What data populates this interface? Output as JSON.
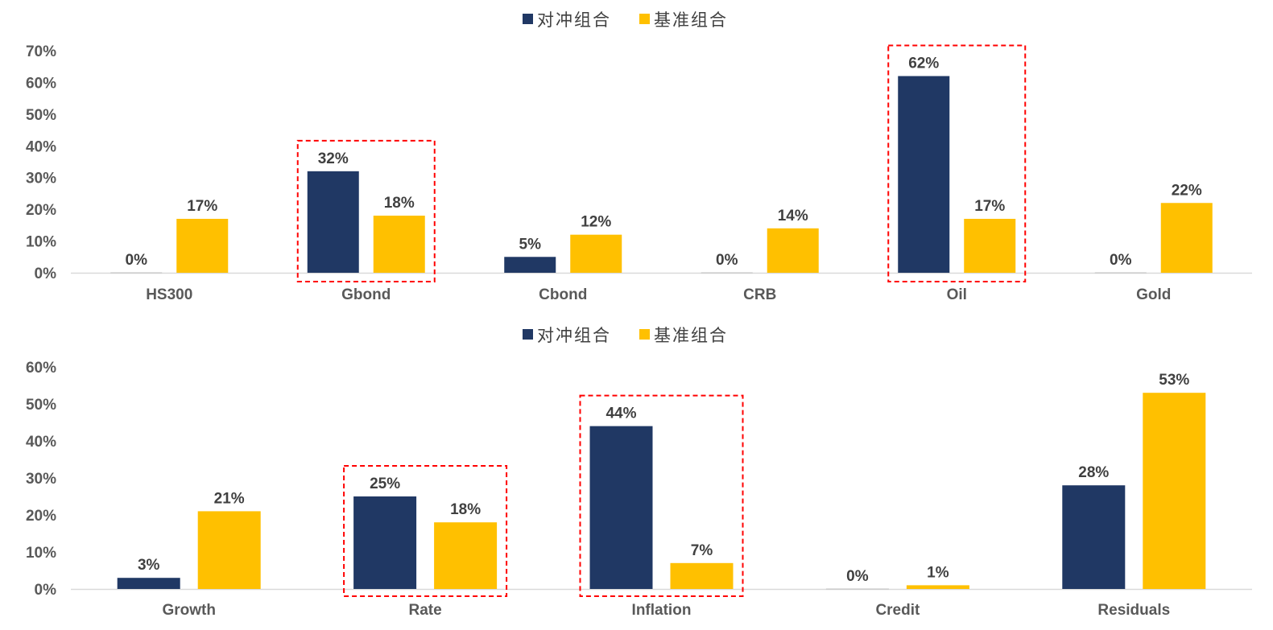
{
  "chart_data": [
    {
      "type": "bar",
      "categories": [
        "HS300",
        "Gbond",
        "Cbond",
        "CRB",
        "Oil",
        "Gold"
      ],
      "series": [
        {
          "name": "对冲组合",
          "color": "#203864",
          "values": [
            0,
            32,
            5,
            0,
            62,
            0
          ]
        },
        {
          "name": "基准组合",
          "color": "#FFC000",
          "values": [
            17,
            18,
            12,
            14,
            17,
            22
          ]
        }
      ],
      "value_labels": [
        [
          "0%",
          "32%",
          "5%",
          "0%",
          "62%",
          "0%"
        ],
        [
          "17%",
          "18%",
          "12%",
          "14%",
          "17%",
          "22%"
        ]
      ],
      "ylim": [
        0,
        70
      ],
      "yticks": [
        0,
        10,
        20,
        30,
        40,
        50,
        60,
        70
      ],
      "ytick_labels": [
        "0%",
        "10%",
        "20%",
        "30%",
        "40%",
        "50%",
        "60%",
        "70%"
      ],
      "legend_position": "top-center",
      "highlighted_categories": [
        "Gbond",
        "Oil"
      ],
      "highlight_color": "#FF0000",
      "grid": false
    },
    {
      "type": "bar",
      "categories": [
        "Growth",
        "Rate",
        "Inflation",
        "Credit",
        "Residuals"
      ],
      "series": [
        {
          "name": "对冲组合",
          "color": "#203864",
          "values": [
            3,
            25,
            44,
            0,
            28
          ]
        },
        {
          "name": "基准组合",
          "color": "#FFC000",
          "values": [
            21,
            18,
            7,
            1,
            53
          ]
        }
      ],
      "value_labels": [
        [
          "3%",
          "25%",
          "44%",
          "0%",
          "28%"
        ],
        [
          "21%",
          "18%",
          "7%",
          "1%",
          "53%"
        ]
      ],
      "ylim": [
        0,
        60
      ],
      "yticks": [
        0,
        10,
        20,
        30,
        40,
        50,
        60
      ],
      "ytick_labels": [
        "0%",
        "10%",
        "20%",
        "30%",
        "40%",
        "50%",
        "60%"
      ],
      "legend_position": "top-center",
      "highlighted_categories": [
        "Rate",
        "Inflation"
      ],
      "highlight_color": "#FF0000",
      "grid": false
    }
  ]
}
